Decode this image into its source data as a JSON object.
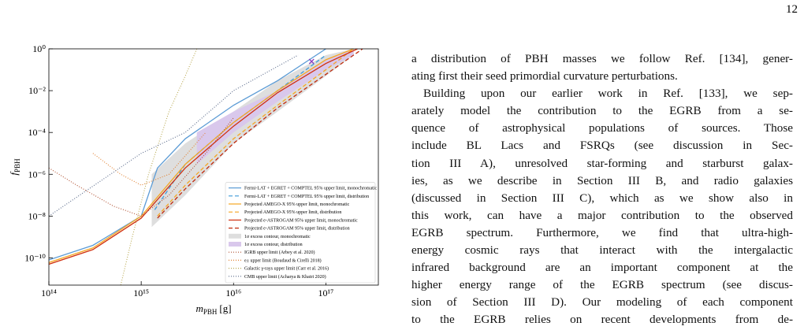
{
  "page_number": "12",
  "chart_data": {
    "type": "line",
    "xscale": "log",
    "yscale": "log",
    "xlim": [
      100000000000000.0,
      3.7e+17
    ],
    "ylim": [
      5e-12,
      1
    ],
    "xticks": [
      {
        "value": 100000000000000.0,
        "label": "10¹⁴"
      },
      {
        "value": 1000000000000000.0,
        "label": "10¹⁵"
      },
      {
        "value": 1e+16,
        "label": "10¹⁶"
      },
      {
        "value": 1e+17,
        "label": "10¹⁷"
      }
    ],
    "yticks": [
      {
        "value": 1,
        "label": "10⁰"
      },
      {
        "value": 0.01,
        "label": "10⁻²"
      },
      {
        "value": 0.0001,
        "label": "10⁻⁴"
      },
      {
        "value": 1e-06,
        "label": "10⁻⁶"
      },
      {
        "value": 1e-08,
        "label": "10⁻⁸"
      },
      {
        "value": 1e-10,
        "label": "10⁻¹⁰"
      }
    ],
    "xlabel": {
      "symbol": "m",
      "subscript": "PBH",
      "unit": "[g]"
    },
    "ylabel": {
      "symbol": "f",
      "subscript": "PBH"
    },
    "legend": "lower right",
    "series": [
      {
        "name": "1σ excess contour, monochromatic",
        "kind": "band",
        "color": "#dedede",
        "x": [
          1300000000000000.0,
          3000000000000000.0,
          1e+16,
          3e+16,
          1e+17,
          2e+17
        ],
        "values": [
          1e-06,
          3e-05,
          0.001,
          0.03,
          0.5,
          1
        ],
        "lower": [
          3e-09,
          1e-07,
          3e-05,
          0.001,
          0.05,
          0.5
        ]
      },
      {
        "name": "1σ excess contour, distribution",
        "kind": "band",
        "color": "#d9c8ec",
        "x": [
          4000000000000000.0,
          1e+16,
          3e+16,
          1e+17,
          2e+17
        ],
        "values": [
          0.0001,
          0.001,
          0.01,
          0.3,
          1
        ],
        "lower": [
          3e-06,
          0.0001,
          0.003,
          0.1,
          0.5
        ]
      },
      {
        "name": "Fermi-LAT + EGRET + COMPTEL 95% upper limit, monochromatic",
        "kind": "line",
        "style": "solid",
        "color": "#5b9bd5",
        "x": [
          100000000000000.0,
          300000000000000.0,
          1000000000000000.0,
          1500000000000000.0,
          3000000000000000.0,
          1e+16,
          3e+16,
          1e+17
        ],
        "values": [
          8e-11,
          4e-10,
          1e-08,
          2e-06,
          5e-05,
          0.002,
          0.03,
          1
        ]
      },
      {
        "name": "Fermi-LAT + EGRET + COMPTEL 95% upper limit, distribution",
        "kind": "line",
        "style": "dashed",
        "color": "#3f9ad8",
        "x": [
          1400000000000000.0,
          3000000000000000.0,
          1e+16,
          3e+16,
          1e+17
        ],
        "values": [
          2e-08,
          3e-06,
          0.0003,
          0.01,
          0.5
        ]
      },
      {
        "name": "Projected AMEGO-X 95% upper limit, monochromatic",
        "kind": "line",
        "style": "solid",
        "color": "#f5a623",
        "x": [
          100000000000000.0,
          300000000000000.0,
          1000000000000000.0,
          3000000000000000.0,
          1e+16,
          3e+16,
          1e+17,
          2e+17
        ],
        "values": [
          6e-11,
          3e-10,
          1e-08,
          3e-06,
          0.0003,
          0.01,
          0.3,
          1
        ]
      },
      {
        "name": "Projected AMEGO-X 95% upper limit, distribution",
        "kind": "line",
        "style": "dashed",
        "color": "#f5a623",
        "x": [
          1500000000000000.0,
          3000000000000000.0,
          1e+16,
          3e+16,
          1e+17,
          2e+17
        ],
        "values": [
          1e-08,
          3e-07,
          5e-05,
          0.002,
          0.1,
          1
        ]
      },
      {
        "name": "Projected e-ASTROGAM 95% upper limit, monochromatic",
        "kind": "line",
        "style": "solid",
        "color": "#d0300f",
        "x": [
          100000000000000.0,
          300000000000000.0,
          1000000000000000.0,
          3000000000000000.0,
          1e+16,
          3e+16,
          1e+17,
          2.2e+17
        ],
        "values": [
          5e-11,
          2.5e-10,
          8e-09,
          2e-06,
          0.0002,
          0.008,
          0.2,
          1
        ]
      },
      {
        "name": "Projected e-ASTROGAM 95% upper limit, distribution",
        "kind": "line",
        "style": "dashed",
        "color": "#c02a0c",
        "x": [
          1500000000000000.0,
          3000000000000000.0,
          1e+16,
          3e+16,
          1e+17,
          2.5e+17
        ],
        "values": [
          8e-09,
          2e-07,
          3e-05,
          0.0015,
          0.06,
          1
        ]
      },
      {
        "name": "IGRB upper limit (Arbey et al. 2020)",
        "kind": "line",
        "style": "dotted",
        "color": "#b05030",
        "x": [
          100000000000000.0,
          200000000000000.0,
          500000000000000.0,
          1000000000000000.0,
          2000000000000000.0,
          5000000000000000.0,
          1e+16
        ],
        "values": [
          2e-06,
          3e-07,
          3e-08,
          1e-08,
          1e-07,
          1e-05,
          0.0005
        ]
      },
      {
        "name": "e± upper limit (Boudaud & Cirelli 2018)",
        "kind": "line",
        "style": "dotted",
        "color": "#e08030",
        "x": [
          300000000000000.0,
          600000000000000.0,
          1000000000000000.0,
          2000000000000000.0,
          5000000000000000.0
        ],
        "values": [
          1e-05,
          1e-06,
          3e-07,
          1e-06,
          0.0001
        ]
      },
      {
        "name": "Galactic γ-rays upper limit (Carr et al. 2016)",
        "kind": "line",
        "style": "dotted",
        "color": "#b8a850",
        "x": [
          600000000000000.0,
          800000000000000.0,
          1200000000000000.0,
          2000000000000000.0,
          3000000000000000.0,
          4000000000000000.0
        ],
        "values": [
          5e-12,
          1e-09,
          1e-06,
          0.001,
          0.05,
          1
        ]
      },
      {
        "name": "CMB upper limit (Acharya & Khatri 2020)",
        "kind": "line",
        "style": "dotted",
        "color": "#5a6a8a",
        "x": [
          100000000000000.0,
          1000000000000000.0,
          3000000000000000.0,
          1e+16,
          5e+16
        ],
        "values": [
          1e-08,
          1e-05,
          0.0001,
          0.01,
          0.5
        ]
      }
    ],
    "markers": [
      {
        "x": 7e+16,
        "y": 0.25,
        "color": "#8a3fc0"
      }
    ]
  },
  "text": {
    "paragraphs": [
      {
        "indent": false,
        "lines": [
          "a distribution of PBH masses we follow Ref. [134], gener-",
          "ating first their seed primordial curvature perturbations."
        ]
      },
      {
        "indent": true,
        "lines": [
          "Building upon our earlier work in Ref. [133], we sep-",
          "arately model the contribution to the EGRB from a se-",
          "quence of astrophysical populations of sources. Those",
          "include BL Lacs and FSRQs (see discussion in Sec-",
          "tion III A), unresolved star-forming and starburst galax-",
          "ies, as we describe in Section III B, and radio galaxies",
          "(discussed in Section III C), which as we show also in",
          "this work, can have a major contribution to the observed",
          "EGRB spectrum. Furthermore, we find that ultra-high-",
          "energy cosmic rays that interact with the intergalactic",
          "infrared background are an important component at the",
          "higher energy range of the EGRB spectrum (see discus-",
          "sion of Section III D). Our modeling of each component",
          "to the EGRB relies on recent developments from de-"
        ]
      }
    ]
  }
}
